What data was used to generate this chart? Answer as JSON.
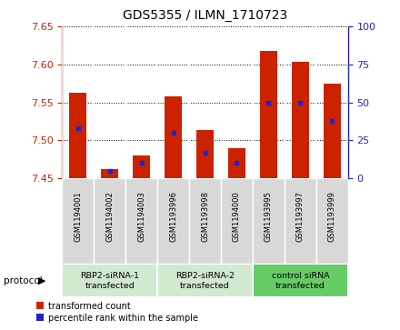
{
  "title": "GDS5355 / ILMN_1710723",
  "samples": [
    "GSM1194001",
    "GSM1194002",
    "GSM1194003",
    "GSM1193996",
    "GSM1193998",
    "GSM1194000",
    "GSM1193995",
    "GSM1193997",
    "GSM1193999"
  ],
  "transformed_counts": [
    7.563,
    7.462,
    7.48,
    7.558,
    7.513,
    7.49,
    7.618,
    7.603,
    7.575
  ],
  "percentile_ranks": [
    33,
    5,
    10,
    30,
    17,
    10,
    50,
    50,
    38
  ],
  "ylim_left": [
    7.45,
    7.65
  ],
  "ylim_right": [
    0,
    100
  ],
  "yticks_left": [
    7.45,
    7.5,
    7.55,
    7.6,
    7.65
  ],
  "yticks_right": [
    0,
    25,
    50,
    75,
    100
  ],
  "bar_color": "#cc2200",
  "percentile_color": "#2222cc",
  "base_value": 7.45,
  "protocol_groups": [
    {
      "label": "RBP2-siRNA-1\ntransfected",
      "start": 0,
      "end": 3
    },
    {
      "label": "RBP2-siRNA-2\ntransfected",
      "start": 3,
      "end": 6
    },
    {
      "label": "control siRNA\ntransfected",
      "start": 6,
      "end": 9
    }
  ],
  "protocol_colors": [
    "#d0ead0",
    "#d0ead0",
    "#66cc66"
  ],
  "sample_box_color": "#d8d8d8",
  "legend_red_label": "transformed count",
  "legend_blue_label": "percentile rank within the sample",
  "plot_bg_color": "#ffffff"
}
